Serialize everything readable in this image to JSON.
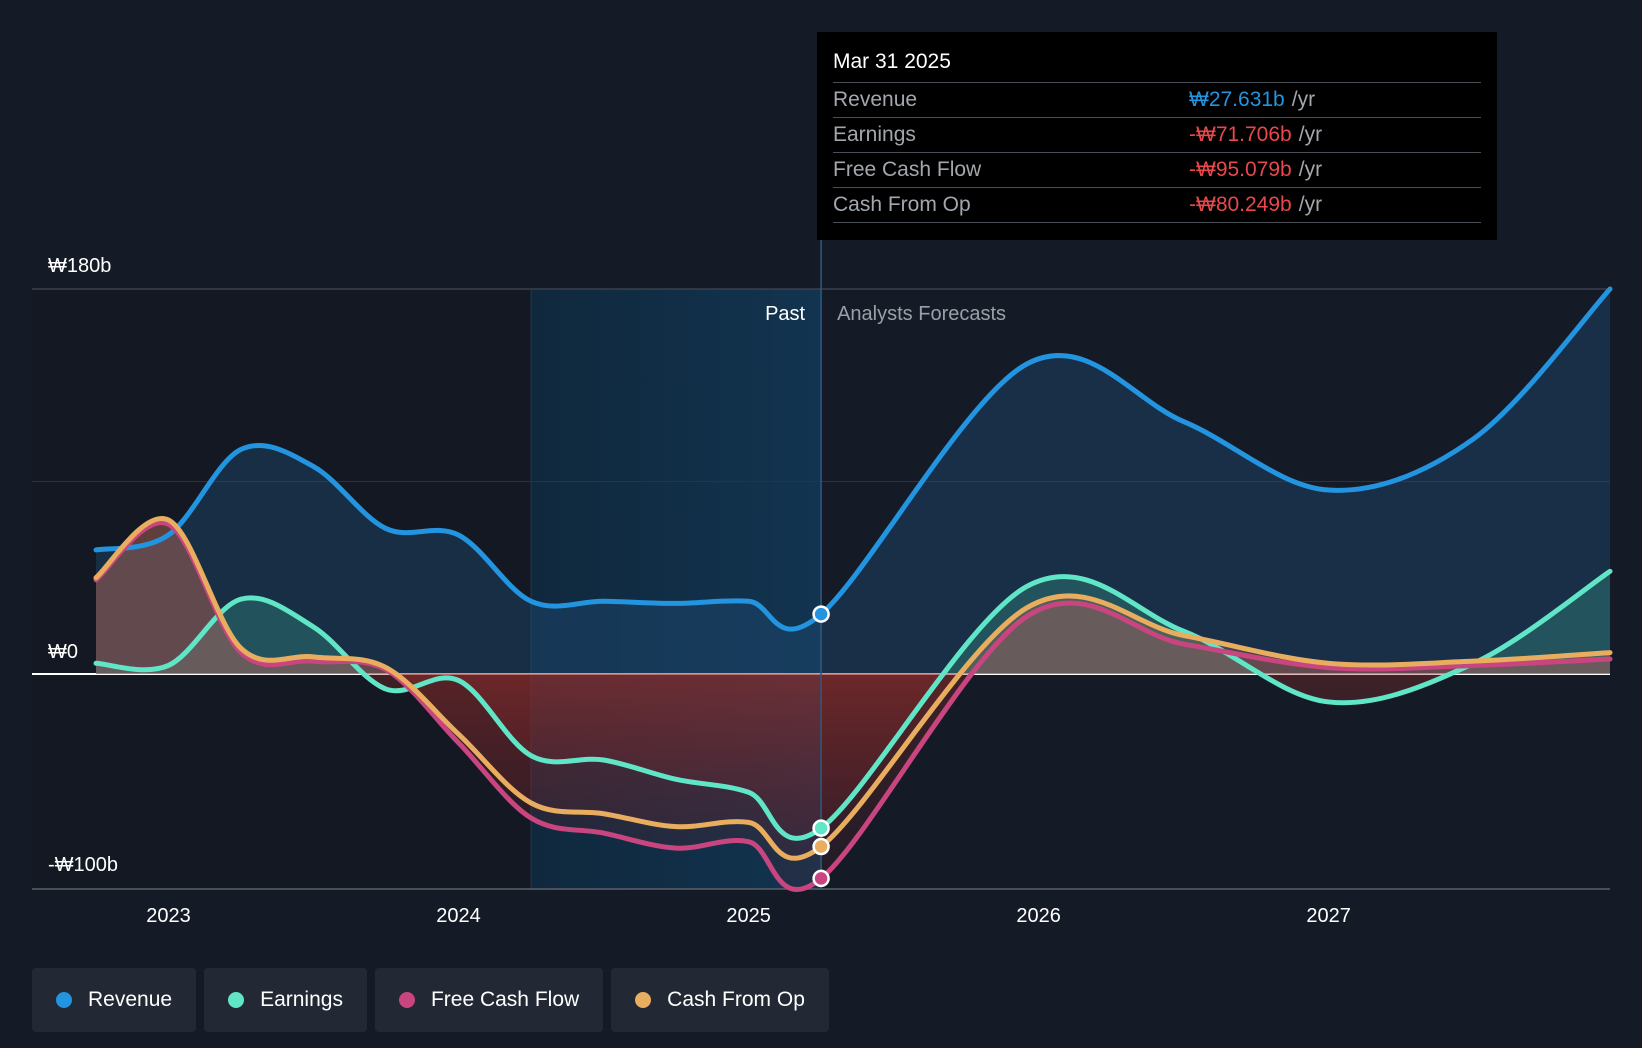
{
  "chart_data": {
    "type": "line",
    "x_ticks": [
      "2023",
      "2024",
      "2025",
      "2026",
      "2027"
    ],
    "y_axis_labels": [
      "₩180b",
      "₩0",
      "-₩100b"
    ],
    "ylim": [
      -100,
      180
    ],
    "xlim": [
      2022.75,
      2027.97
    ],
    "past_label": "Past",
    "forecast_label": "Analysts Forecasts",
    "divider_x": 2025.25,
    "shade_start_x": 2024.25,
    "series": [
      {
        "name": "Revenue",
        "color": "#2394df",
        "points": [
          [
            2022.75,
            58
          ],
          [
            2023.0,
            65
          ],
          [
            2023.25,
            105
          ],
          [
            2023.5,
            97
          ],
          [
            2023.75,
            68
          ],
          [
            2024.0,
            65
          ],
          [
            2024.25,
            34
          ],
          [
            2024.5,
            34
          ],
          [
            2024.75,
            33
          ],
          [
            2025.0,
            34
          ],
          [
            2025.25,
            28
          ],
          [
            2025.96,
            145
          ],
          [
            2026.5,
            118
          ],
          [
            2027.0,
            86
          ],
          [
            2027.5,
            110
          ],
          [
            2027.97,
            180
          ]
        ]
      },
      {
        "name": "Earnings",
        "color": "#60e6c6",
        "points": [
          [
            2022.75,
            5
          ],
          [
            2023.0,
            4
          ],
          [
            2023.25,
            35
          ],
          [
            2023.5,
            22
          ],
          [
            2023.75,
            -7
          ],
          [
            2024.0,
            -3
          ],
          [
            2024.25,
            -38
          ],
          [
            2024.5,
            -40
          ],
          [
            2024.75,
            -49
          ],
          [
            2025.0,
            -55
          ],
          [
            2025.25,
            -71.706
          ],
          [
            2025.96,
            41
          ],
          [
            2026.5,
            20
          ],
          [
            2027.0,
            -13
          ],
          [
            2027.5,
            5
          ],
          [
            2027.97,
            48
          ]
        ]
      },
      {
        "name": "Free Cash Flow",
        "color": "#c9457f",
        "points": [
          [
            2022.75,
            44
          ],
          [
            2023.0,
            70
          ],
          [
            2023.25,
            10
          ],
          [
            2023.5,
            6
          ],
          [
            2023.75,
            2
          ],
          [
            2024.0,
            -32
          ],
          [
            2024.25,
            -67
          ],
          [
            2024.5,
            -74
          ],
          [
            2024.75,
            -81
          ],
          [
            2025.0,
            -78
          ],
          [
            2025.25,
            -95.079
          ],
          [
            2025.96,
            27
          ],
          [
            2026.5,
            14
          ],
          [
            2027.0,
            3
          ],
          [
            2027.5,
            4
          ],
          [
            2027.97,
            7
          ]
        ]
      },
      {
        "name": "Cash From Op",
        "color": "#e9ad5f",
        "points": [
          [
            2022.75,
            45
          ],
          [
            2023.0,
            72
          ],
          [
            2023.25,
            12
          ],
          [
            2023.5,
            8
          ],
          [
            2023.75,
            3
          ],
          [
            2024.0,
            -28
          ],
          [
            2024.25,
            -60
          ],
          [
            2024.5,
            -65
          ],
          [
            2024.75,
            -71
          ],
          [
            2025.0,
            -69
          ],
          [
            2025.25,
            -80.249
          ],
          [
            2025.96,
            31
          ],
          [
            2026.5,
            18
          ],
          [
            2027.0,
            5
          ],
          [
            2027.5,
            6
          ],
          [
            2027.97,
            10
          ]
        ]
      }
    ]
  },
  "tooltip": {
    "date": "Mar 31 2025",
    "unit": "/yr",
    "rows": [
      {
        "label": "Revenue",
        "value": "₩27.631b",
        "color": "#2394df"
      },
      {
        "label": "Earnings",
        "value": "-₩71.706b",
        "color": "#e8484c"
      },
      {
        "label": "Free Cash Flow",
        "value": "-₩95.079b",
        "color": "#e8484c"
      },
      {
        "label": "Cash From Op",
        "value": "-₩80.249b",
        "color": "#e8484c"
      }
    ]
  },
  "legend": [
    {
      "label": "Revenue",
      "color": "#2394df"
    },
    {
      "label": "Earnings",
      "color": "#60e6c6"
    },
    {
      "label": "Free Cash Flow",
      "color": "#c9457f"
    },
    {
      "label": "Cash From Op",
      "color": "#e9ad5f"
    }
  ]
}
